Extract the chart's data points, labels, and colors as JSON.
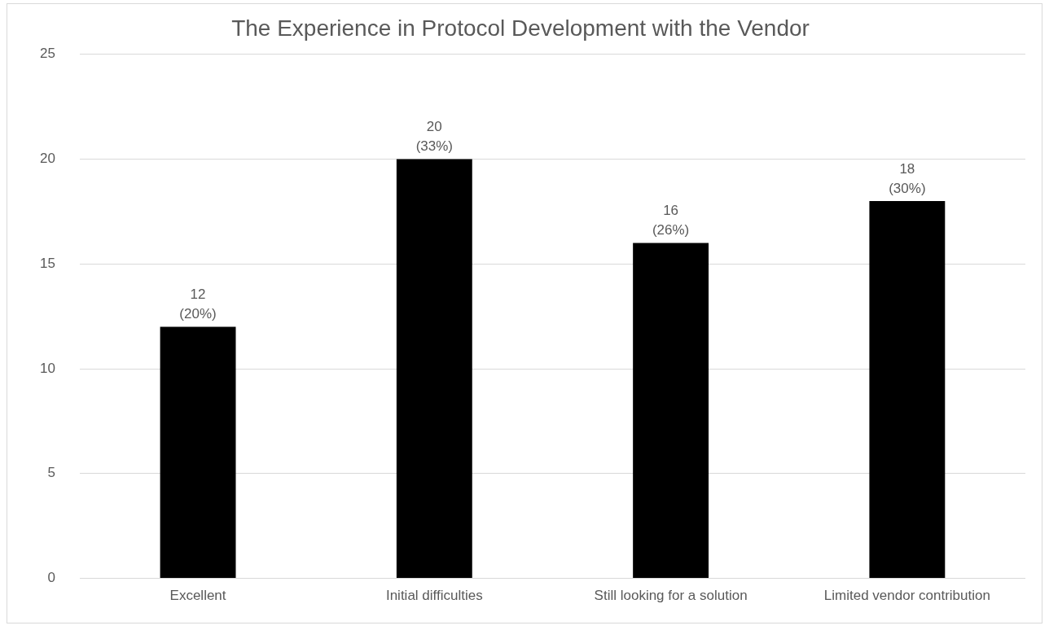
{
  "chart_data": {
    "type": "bar",
    "title": "The Experience in Protocol Development with the Vendor",
    "categories": [
      "Excellent",
      "Initial difficulties",
      "Still looking for a solution",
      "Limited vendor contribution"
    ],
    "values": [
      12,
      20,
      16,
      18
    ],
    "value_labels": [
      "12\n(20%)",
      "20\n(33%)",
      "16\n(26%)",
      "18\n(30%)"
    ],
    "color": "#000000",
    "ylim": [
      0,
      25
    ],
    "yticks": [
      0,
      5,
      10,
      15,
      20,
      25
    ],
    "grid": "y",
    "legend": false
  }
}
